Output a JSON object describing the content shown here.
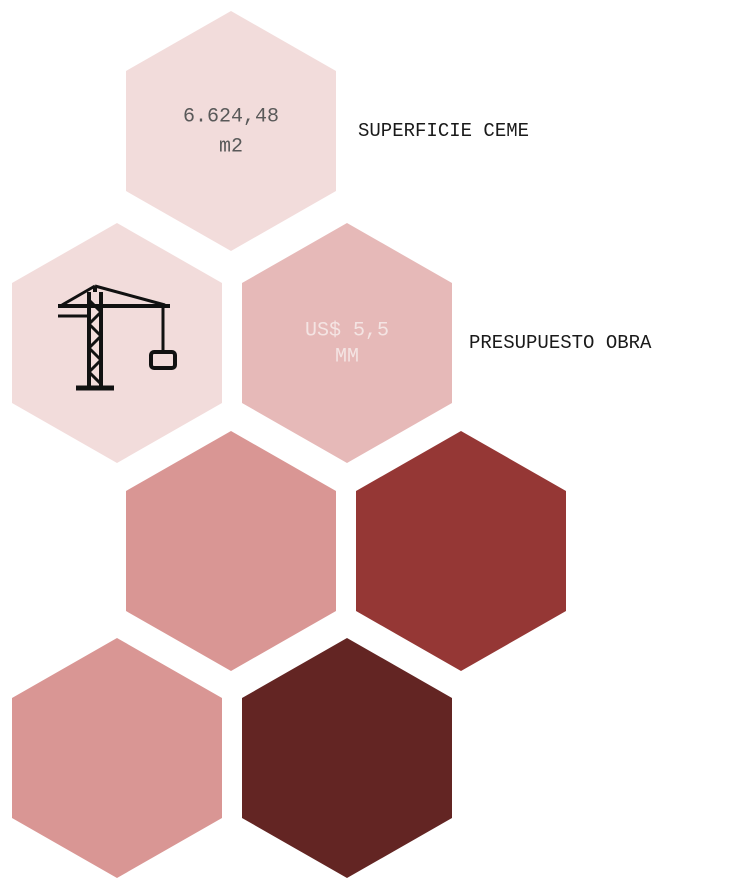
{
  "items": [
    {
      "value": "6.624,48",
      "unit": "m2",
      "caption": "SUPERFICIE CEME"
    },
    {
      "value": "US$ 5,5",
      "unit": "MM",
      "caption": "PRESUPUESTO OBRA"
    }
  ]
}
